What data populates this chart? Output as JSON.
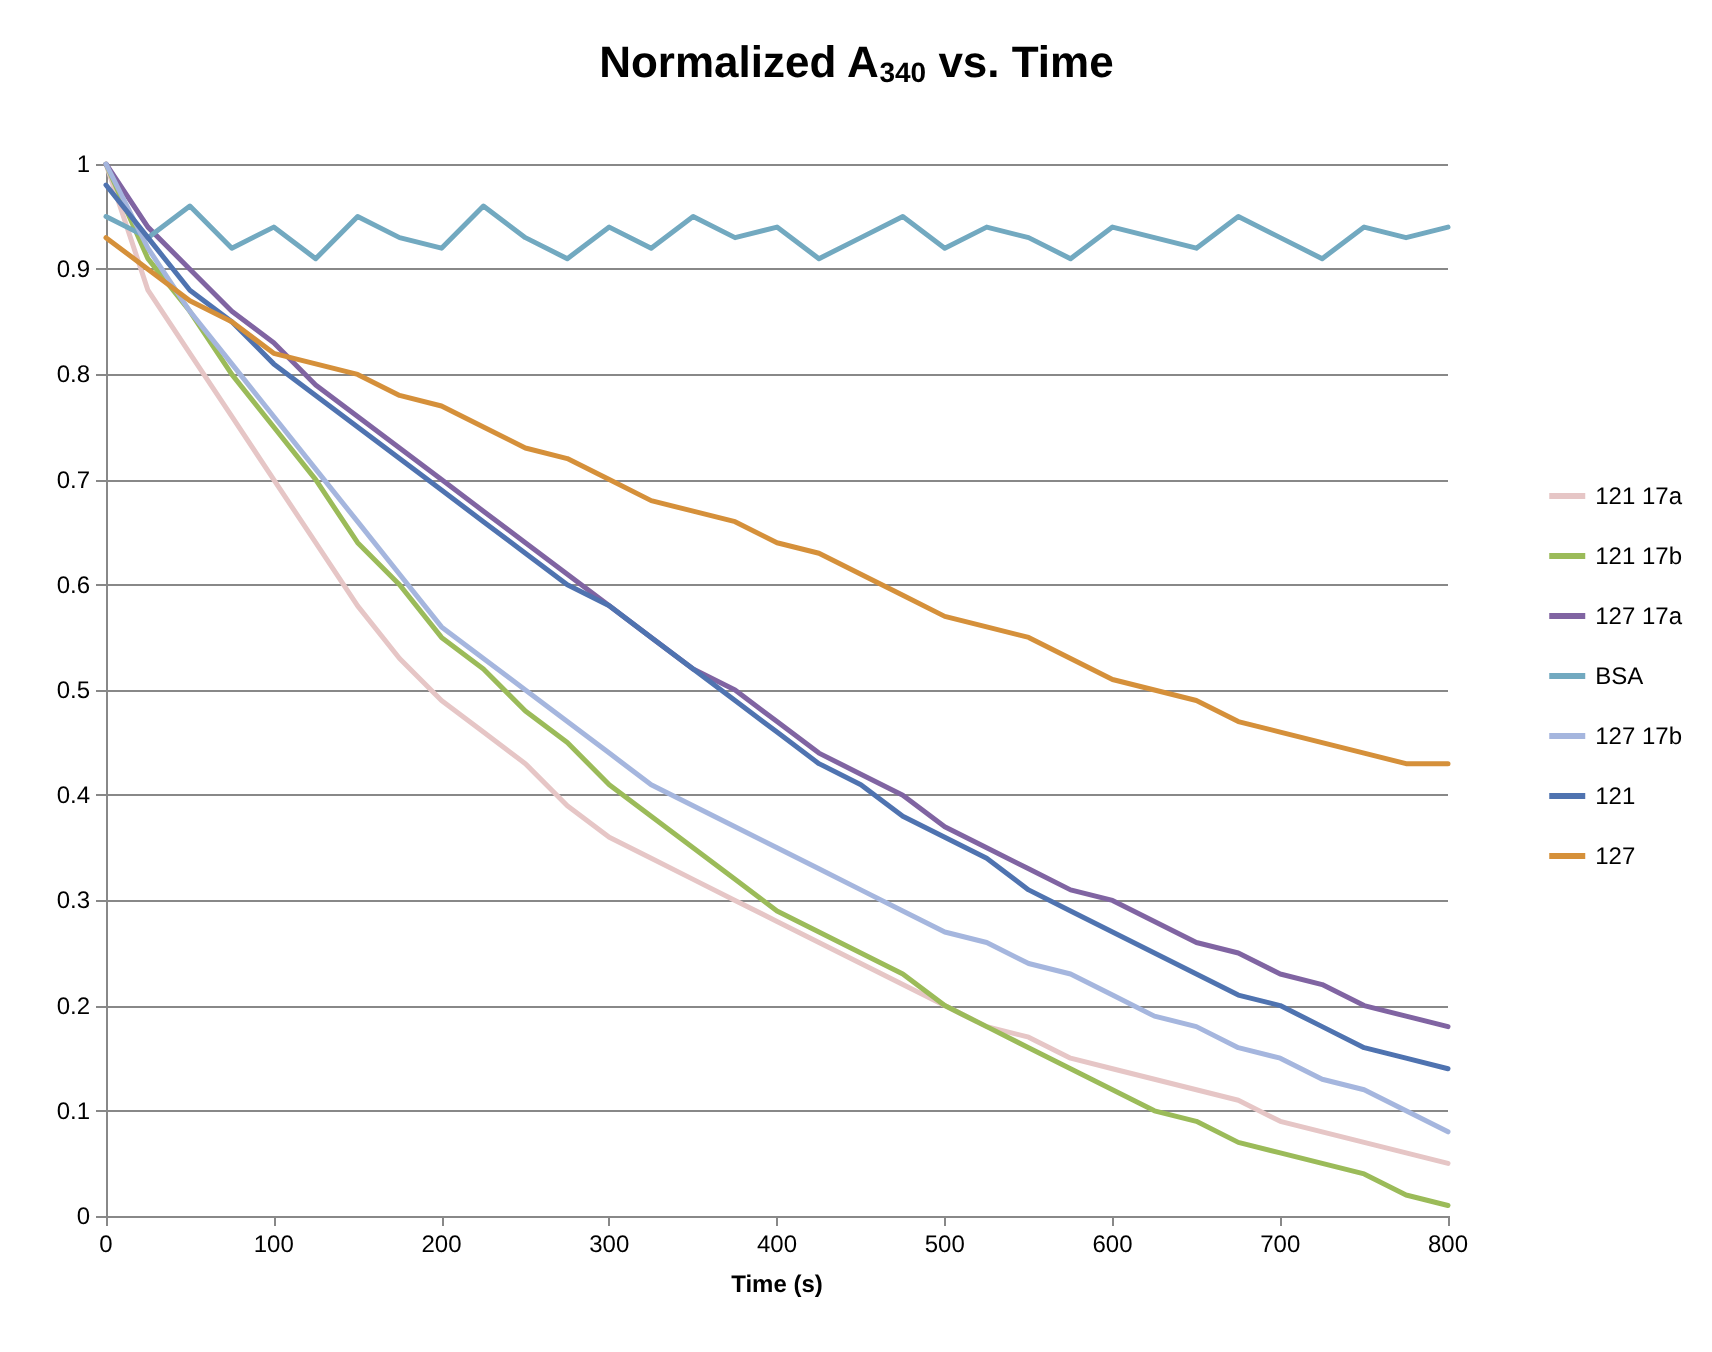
{
  "chart_data": {
    "type": "line",
    "title": "Normalized A$_{340}$ vs. Time",
    "xlabel": "Time (s)",
    "x": [
      0,
      25,
      50,
      75,
      100,
      125,
      150,
      175,
      200,
      225,
      250,
      275,
      300,
      325,
      350,
      375,
      400,
      425,
      450,
      475,
      500,
      525,
      550,
      575,
      600,
      625,
      650,
      675,
      700,
      725,
      750,
      775,
      800
    ],
    "series": [
      {
        "name": "121 17a",
        "color": "#e6c6c6",
        "values": [
          1.0,
          0.88,
          0.82,
          0.76,
          0.7,
          0.64,
          0.58,
          0.53,
          0.49,
          0.46,
          0.43,
          0.39,
          0.36,
          0.34,
          0.32,
          0.3,
          0.28,
          0.26,
          0.24,
          0.22,
          0.2,
          0.18,
          0.17,
          0.15,
          0.14,
          0.13,
          0.12,
          0.11,
          0.09,
          0.08,
          0.07,
          0.06,
          0.05
        ]
      },
      {
        "name": "121 17b",
        "color": "#9bbb59",
        "values": [
          1.0,
          0.91,
          0.86,
          0.8,
          0.75,
          0.7,
          0.64,
          0.6,
          0.55,
          0.52,
          0.48,
          0.45,
          0.41,
          0.38,
          0.35,
          0.32,
          0.29,
          0.27,
          0.25,
          0.23,
          0.2,
          0.18,
          0.16,
          0.14,
          0.12,
          0.1,
          0.09,
          0.07,
          0.06,
          0.05,
          0.04,
          0.02,
          0.01
        ]
      },
      {
        "name": "127 17a",
        "color": "#8064a2",
        "values": [
          1.0,
          0.94,
          0.9,
          0.86,
          0.83,
          0.79,
          0.76,
          0.73,
          0.7,
          0.67,
          0.64,
          0.61,
          0.58,
          0.55,
          0.52,
          0.5,
          0.47,
          0.44,
          0.42,
          0.4,
          0.37,
          0.35,
          0.33,
          0.31,
          0.3,
          0.28,
          0.26,
          0.25,
          0.23,
          0.22,
          0.2,
          0.19,
          0.18
        ]
      },
      {
        "name": "BSA",
        "color": "#72a9c0",
        "values": [
          0.95,
          0.93,
          0.96,
          0.92,
          0.94,
          0.91,
          0.95,
          0.93,
          0.92,
          0.96,
          0.93,
          0.91,
          0.94,
          0.92,
          0.95,
          0.93,
          0.94,
          0.91,
          0.93,
          0.95,
          0.92,
          0.94,
          0.93,
          0.91,
          0.94,
          0.93,
          0.92,
          0.95,
          0.93,
          0.91,
          0.94,
          0.93,
          0.94
        ]
      },
      {
        "name": "127 17b",
        "color": "#a5b6de",
        "values": [
          1.0,
          0.92,
          0.86,
          0.81,
          0.76,
          0.71,
          0.66,
          0.61,
          0.56,
          0.53,
          0.5,
          0.47,
          0.44,
          0.41,
          0.39,
          0.37,
          0.35,
          0.33,
          0.31,
          0.29,
          0.27,
          0.26,
          0.24,
          0.23,
          0.21,
          0.19,
          0.18,
          0.16,
          0.15,
          0.13,
          0.12,
          0.1,
          0.08
        ]
      },
      {
        "name": "121",
        "color": "#4f73b0",
        "values": [
          0.98,
          0.93,
          0.88,
          0.85,
          0.81,
          0.78,
          0.75,
          0.72,
          0.69,
          0.66,
          0.63,
          0.6,
          0.58,
          0.55,
          0.52,
          0.49,
          0.46,
          0.43,
          0.41,
          0.38,
          0.36,
          0.34,
          0.31,
          0.29,
          0.27,
          0.25,
          0.23,
          0.21,
          0.2,
          0.18,
          0.16,
          0.15,
          0.14
        ]
      },
      {
        "name": "127",
        "color": "#d5903a",
        "values": [
          0.93,
          0.9,
          0.87,
          0.85,
          0.82,
          0.81,
          0.8,
          0.78,
          0.77,
          0.75,
          0.73,
          0.72,
          0.7,
          0.68,
          0.67,
          0.66,
          0.64,
          0.63,
          0.61,
          0.59,
          0.57,
          0.56,
          0.55,
          0.53,
          0.51,
          0.5,
          0.49,
          0.47,
          0.46,
          0.45,
          0.44,
          0.43,
          0.43
        ]
      }
    ],
    "xlim": [
      0,
      800
    ],
    "xticks": [
      0,
      100,
      200,
      300,
      400,
      500,
      600,
      700,
      800
    ],
    "ylim": [
      0,
      1
    ],
    "yticks": [
      0,
      0.1,
      0.2,
      0.3,
      0.4,
      0.5,
      0.6,
      0.7,
      0.8,
      0.9,
      1
    ],
    "grid": "y",
    "legend": "right",
    "marker": "none",
    "line_style": "solid"
  }
}
